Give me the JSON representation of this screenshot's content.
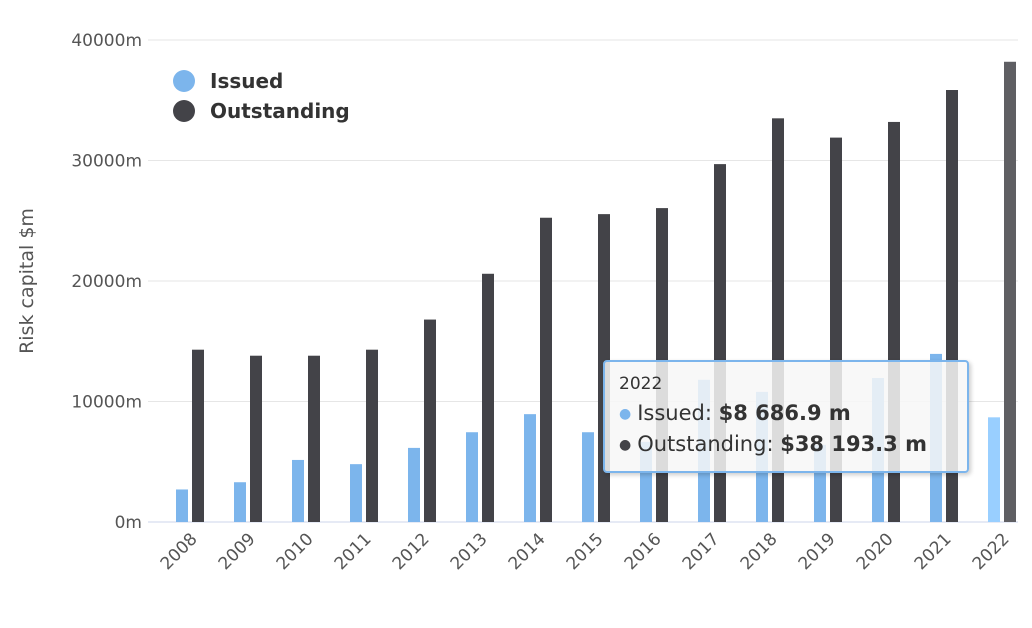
{
  "chart_data": {
    "type": "bar",
    "title": "",
    "xlabel": "",
    "ylabel": "Risk capital $m",
    "ylim": [
      0,
      40000
    ],
    "yticks": [
      0,
      10000,
      20000,
      30000,
      40000
    ],
    "ytick_labels": [
      "0m",
      "10000m",
      "20000m",
      "30000m",
      "40000m"
    ],
    "grid": true,
    "legend": "top-left",
    "categories": [
      "2008",
      "2009",
      "2010",
      "2011",
      "2012",
      "2013",
      "2014",
      "2015",
      "2016",
      "2017",
      "2018",
      "2019",
      "2020",
      "2021",
      "2022"
    ],
    "series": [
      {
        "name": "Issued",
        "color": "#7cb5ec",
        "values": [
          2700,
          3300,
          5150,
          4800,
          6150,
          7450,
          8950,
          7450,
          6650,
          11800,
          10800,
          6400,
          11950,
          13950,
          8686.9
        ]
      },
      {
        "name": "Outstanding",
        "color": "#434348",
        "values": [
          14300,
          13800,
          13800,
          14300,
          16800,
          20600,
          25250,
          25550,
          26050,
          29700,
          33500,
          31900,
          33200,
          35850,
          38193.3
        ]
      }
    ],
    "hovered_category": "2022",
    "tooltip": {
      "header": "2022",
      "rows": [
        {
          "label": "Issued: ",
          "value": "$8 686.9 m"
        },
        {
          "label": "Outstanding: ",
          "value": "$38 193.3 m"
        }
      ]
    }
  }
}
